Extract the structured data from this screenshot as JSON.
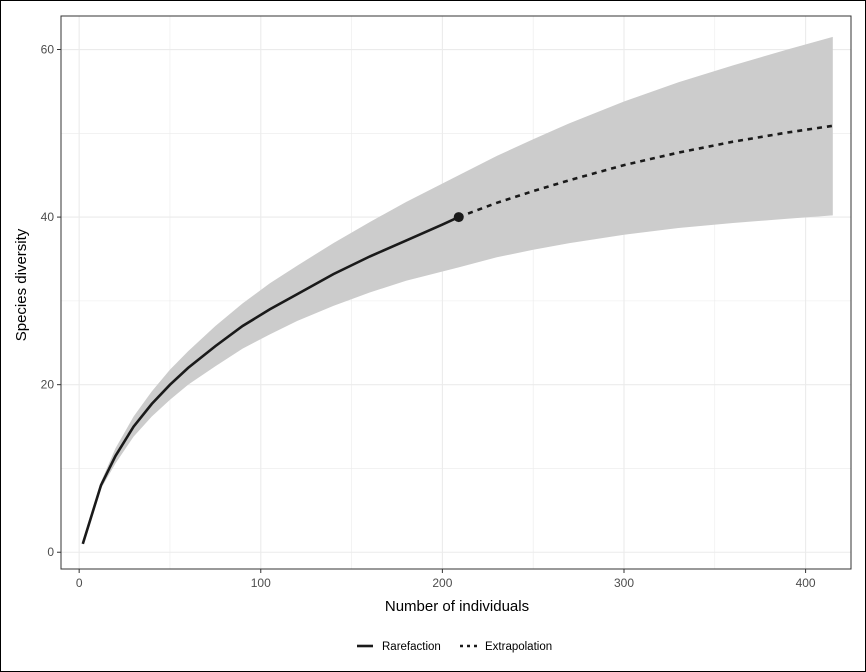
{
  "chart_data": {
    "type": "line",
    "title": "",
    "xlabel": "Number of individuals",
    "ylabel": "Species diversity",
    "xlim": [
      -10,
      425
    ],
    "ylim": [
      -2,
      64
    ],
    "x_ticks": [
      0,
      100,
      200,
      300,
      400
    ],
    "y_ticks": [
      0,
      20,
      40,
      60
    ],
    "grid": true,
    "legend_position": "bottom",
    "reference_point": {
      "x": 209,
      "y": 40
    },
    "series": [
      {
        "name": "Rarefaction",
        "linestyle": "solid",
        "color": "#1a1a1a",
        "x": [
          2,
          12,
          20,
          30,
          40,
          50,
          60,
          75,
          90,
          105,
          120,
          140,
          160,
          180,
          200,
          209
        ],
        "y": [
          1,
          8,
          11.5,
          15,
          17.7,
          20,
          22,
          24.6,
          27,
          29,
          30.8,
          33.2,
          35.3,
          37.2,
          39.1,
          40
        ]
      },
      {
        "name": "Extrapolation",
        "linestyle": "dashed",
        "color": "#1a1a1a",
        "x": [
          209,
          230,
          250,
          270,
          300,
          330,
          360,
          390,
          415
        ],
        "y": [
          40,
          41.7,
          43.1,
          44.4,
          46.2,
          47.7,
          49.0,
          50.1,
          50.9
        ]
      }
    ],
    "confidence_band": {
      "color": "#cccccc",
      "x": [
        2,
        12,
        20,
        30,
        40,
        50,
        60,
        75,
        90,
        105,
        120,
        140,
        160,
        180,
        209,
        230,
        250,
        270,
        300,
        330,
        360,
        390,
        415
      ],
      "lower": [
        1,
        7.6,
        10.6,
        13.8,
        16.2,
        18.2,
        20,
        22.2,
        24.3,
        26,
        27.6,
        29.4,
        31,
        32.4,
        34,
        35.2,
        36.1,
        36.9,
        37.9,
        38.7,
        39.3,
        39.8,
        40.2
      ],
      "upper": [
        1,
        8.4,
        12.4,
        16.2,
        19.2,
        21.8,
        24,
        27,
        29.7,
        32.1,
        34.2,
        36.9,
        39.4,
        41.8,
        45,
        47.3,
        49.3,
        51.2,
        53.8,
        56.1,
        58.1,
        60,
        61.5
      ]
    }
  }
}
